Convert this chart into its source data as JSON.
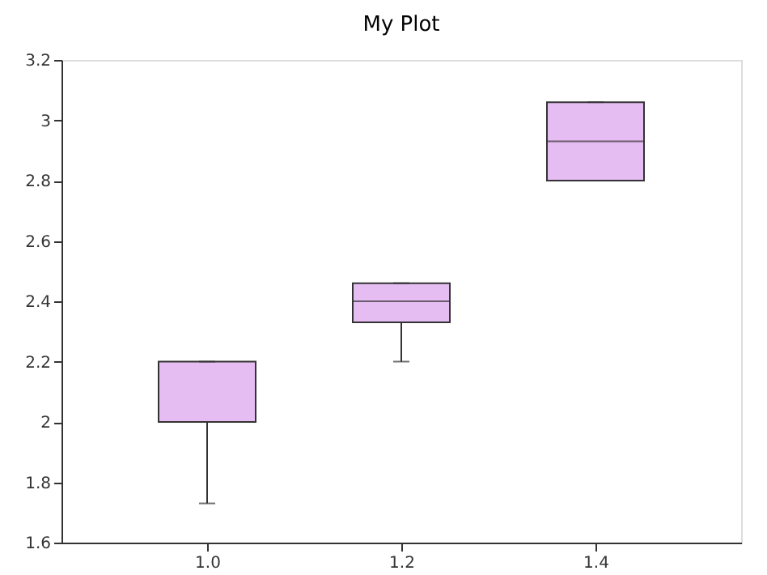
{
  "chart_data": {
    "type": "box",
    "title": "My Plot",
    "categories": [
      "1.0",
      "1.2",
      "1.4"
    ],
    "boxes": [
      {
        "low": 1.73,
        "q1": 2.0,
        "median": 2.0,
        "q3": 2.2,
        "high": 2.2
      },
      {
        "low": 2.2,
        "q1": 2.33,
        "median": 2.4,
        "q3": 2.46,
        "high": 2.46
      },
      {
        "low": 2.8,
        "q1": 2.8,
        "median": 2.93,
        "q3": 3.06,
        "high": 3.06
      }
    ],
    "color": "#e6bdf2",
    "ylim": [
      1.6,
      3.2
    ],
    "yticks": [
      1.6,
      1.8,
      2,
      2.2,
      2.4,
      2.6,
      2.8,
      3,
      3.2
    ],
    "grid": false
  }
}
